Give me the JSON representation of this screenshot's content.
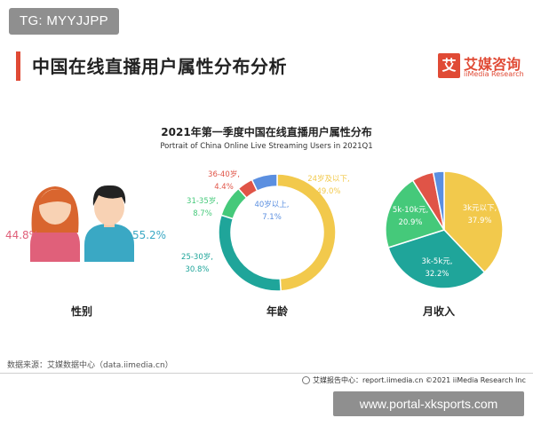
{
  "badge": {
    "text": "TG: MYYJJPP"
  },
  "page_title": "中国在线直播用户属性分布分析",
  "logo": {
    "mark": "艾",
    "name": "艾媒咨询",
    "sub": "iiMedia Research"
  },
  "colors": {
    "accent": "#e04a35",
    "female": "#e0607a",
    "male": "#3aa8c4",
    "yellow": "#f2c94c",
    "teal": "#1fa59a",
    "green": "#45c97a",
    "red": "#e05447",
    "blue": "#5b8fe0"
  },
  "chart_data": {
    "title": "2021年第一季度中国在线直播用户属性分布",
    "subtitle": "Portrait of China Online Live Streaming Users in 2021Q1",
    "charts": [
      {
        "type": "pictogram",
        "name": "性别",
        "series": [
          {
            "label": "女",
            "value": 44.8,
            "display": "44.8%",
            "color": "#e0607a",
            "icon": "female-user-icon"
          },
          {
            "label": "男",
            "value": 55.2,
            "display": "55.2%",
            "color": "#3aa8c4",
            "icon": "male-user-icon"
          }
        ]
      },
      {
        "type": "pie",
        "variant": "donut",
        "name": "年龄",
        "slices": [
          {
            "label": "24岁及以下,",
            "value": 49.0,
            "display": "49.0%",
            "color": "#f2c94c"
          },
          {
            "label": "25-30岁,",
            "value": 30.8,
            "display": "30.8%",
            "color": "#1fa59a"
          },
          {
            "label": "31-35岁,",
            "value": 8.7,
            "display": "8.7%",
            "color": "#45c97a"
          },
          {
            "label": "36-40岁,",
            "value": 4.4,
            "display": "4.4%",
            "color": "#e05447"
          },
          {
            "label": "40岁以上,",
            "value": 7.1,
            "display": "7.1%",
            "color": "#5b8fe0"
          }
        ]
      },
      {
        "type": "pie",
        "name": "月收入",
        "slices": [
          {
            "label": "3k元以下,",
            "value": 37.9,
            "display": "37.9%",
            "color": "#f2c94c"
          },
          {
            "label": "3k-5k元,",
            "value": 32.2,
            "display": "32.2%",
            "color": "#1fa59a"
          },
          {
            "label": "5k-10k元,",
            "value": 20.9,
            "display": "20.9%",
            "color": "#45c97a"
          },
          {
            "label": "",
            "value": 6.0,
            "display": "",
            "color": "#e05447"
          },
          {
            "label": "",
            "value": 3.0,
            "display": "",
            "color": "#5b8fe0"
          }
        ]
      }
    ]
  },
  "source": "数据来源：艾媒数据中心（data.iimedia.cn）",
  "footer": "艾媒报告中心：report.iimedia.cn ©2021  iiMedia Research  Inc",
  "watermark": "www.portal-xksports.com"
}
